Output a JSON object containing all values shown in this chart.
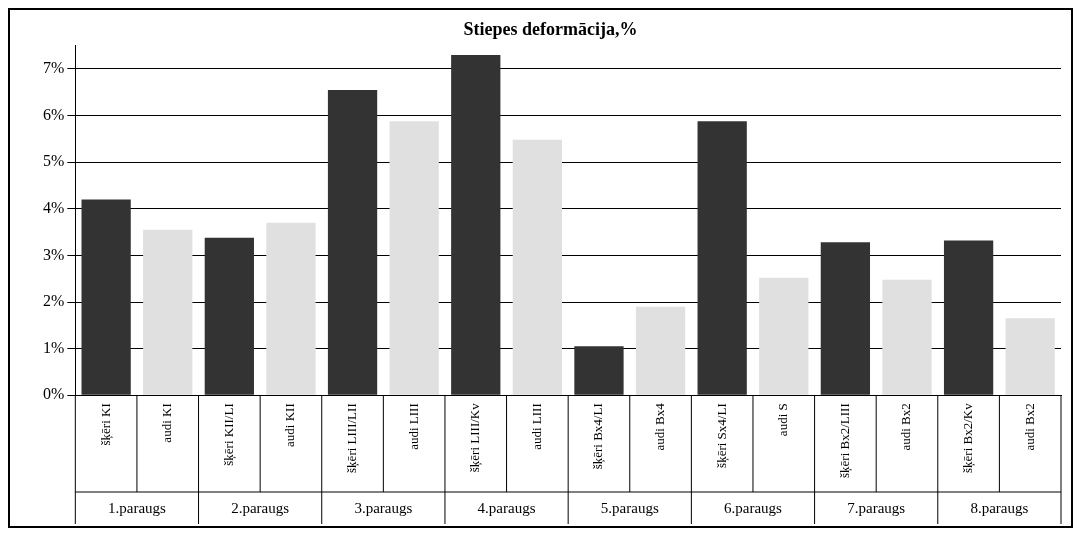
{
  "chart_data": {
    "type": "bar",
    "title": "Stiepes deformācija,%",
    "categories": [
      "šķēri KI",
      "audi KI",
      "šķēri KII/LI",
      "audi KII",
      "šķēri LIII/LII",
      "audi LIII",
      "šķēri LIII/Kv",
      "audi LIII",
      "šķēri Bx4/LI",
      "audi Bx4",
      "šķēri Sx4/LI",
      "audi S",
      "šķēri Bx2/LIII",
      "audi Bx2",
      "šķēri Bx2/Kv",
      "audi Bx2"
    ],
    "values": [
      4.2,
      3.55,
      3.38,
      3.7,
      6.55,
      5.88,
      7.3,
      5.48,
      1.05,
      1.9,
      5.88,
      2.52,
      3.28,
      2.48,
      3.32,
      1.65
    ],
    "colors": [
      "#333333",
      "#e0e0e0",
      "#333333",
      "#e0e0e0",
      "#333333",
      "#e0e0e0",
      "#333333",
      "#e0e0e0",
      "#333333",
      "#e0e0e0",
      "#333333",
      "#e0e0e0",
      "#333333",
      "#e0e0e0",
      "#333333",
      "#e0e0e0"
    ],
    "ylim": [
      0,
      7.5
    ],
    "yticks": [
      {
        "value": 0,
        "label": "0%"
      },
      {
        "value": 1,
        "label": "1%"
      },
      {
        "value": 2,
        "label": "2%"
      },
      {
        "value": 3,
        "label": "3%"
      },
      {
        "value": 4,
        "label": "4%"
      },
      {
        "value": 5,
        "label": "5%"
      },
      {
        "value": 6,
        "label": "6%"
      },
      {
        "value": 7,
        "label": "7%"
      }
    ],
    "grid": "y",
    "legend": false,
    "annotations": [
      "1.paraugs",
      "2.paraugs",
      "3.paraugs",
      "4.paraugs",
      "5.paraugs",
      "6.paraugs",
      "7.paraugs",
      "8.paraugs"
    ]
  }
}
